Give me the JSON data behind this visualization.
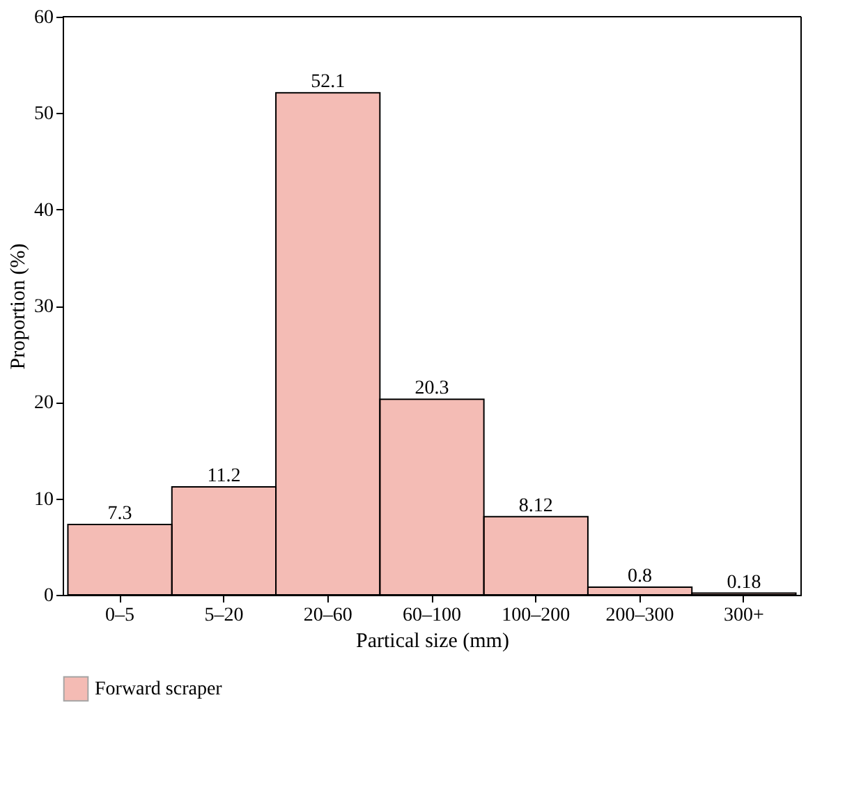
{
  "chart_data": {
    "type": "bar",
    "xlabel": "Partical size (mm)",
    "ylabel": "Proportion (%)",
    "categories": [
      "0–5",
      "5–20",
      "20–60",
      "60–100",
      "100–200",
      "200–300",
      "300+"
    ],
    "series": [
      {
        "name": "Forward scraper",
        "color": "#e0402a",
        "values": [
          7.3,
          11.2,
          52.1,
          20.3,
          8.12,
          0.8,
          0.18
        ]
      }
    ],
    "ylim": [
      0,
      60
    ],
    "yticks": [
      0,
      10,
      20,
      30,
      40,
      50,
      60
    ],
    "grid": false,
    "legend": "bottom left",
    "data_labels": true
  }
}
